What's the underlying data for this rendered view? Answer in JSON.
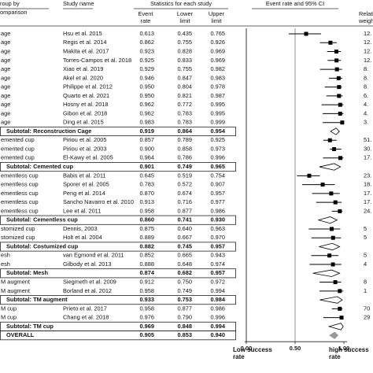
{
  "chart_data": {
    "type": "forest",
    "header": {
      "group": "roup by",
      "comparison": "omparison",
      "study": "Study name",
      "stats": "Statistics for each study",
      "event_rate": "Event rate",
      "lower": "Lower limit",
      "upper": "Upper limit",
      "ci": "Event rate and 95% CI",
      "weight": "Relativ weigh"
    },
    "xlim": [
      0,
      1
    ],
    "xticks": [
      {
        "value": 0,
        "label": "0.00"
      },
      {
        "value": 0.5,
        "label": "0.50"
      },
      {
        "value": 1,
        "label": "1.00"
      }
    ],
    "xlabel_left": "Low success rate",
    "xlabel_right": "high success rate",
    "rows": [
      {
        "group": "age",
        "study": "Hsu et al. 2015",
        "values": [
          0.613,
          0.435,
          0.765
        ],
        "value_labels": [
          "0.613",
          "0.435",
          "0.765"
        ],
        "weight": "12."
      },
      {
        "group": "age",
        "study": "Regis et al. 2014",
        "values": [
          0.862,
          0.755,
          0.926
        ],
        "value_labels": [
          "0.862",
          "0.755",
          "0.926"
        ],
        "weight": "12."
      },
      {
        "group": "age",
        "study": "Makita et al. 2017",
        "values": [
          0.923,
          0.828,
          0.969
        ],
        "value_labels": [
          "0.923",
          "0.828",
          "0.969"
        ],
        "weight": "12."
      },
      {
        "group": "age",
        "study": "Torres-Campos et al. 2018",
        "values": [
          0.925,
          0.833,
          0.969
        ],
        "value_labels": [
          "0.925",
          "0.833",
          "0.969"
        ],
        "weight": "12."
      },
      {
        "group": "age",
        "study": "Xiao et al. 2019",
        "values": [
          0.929,
          0.755,
          0.982
        ],
        "value_labels": [
          "0.929",
          "0.755",
          "0.982"
        ],
        "weight": "8."
      },
      {
        "group": "age",
        "study": "Akel et al. 2020",
        "values": [
          0.946,
          0.847,
          0.983
        ],
        "value_labels": [
          "0.946",
          "0.847",
          "0.983"
        ],
        "weight": "8."
      },
      {
        "group": "age",
        "study": "Philippe et al. 2012",
        "values": [
          0.95,
          0.804,
          0.978
        ],
        "value_labels": [
          "0.950",
          "0.804",
          "0.978"
        ],
        "weight": "8."
      },
      {
        "group": "age",
        "study": "Quarto et al. 2021",
        "values": [
          0.95,
          0.821,
          0.987
        ],
        "value_labels": [
          "0.950",
          "0.821",
          "0.987"
        ],
        "weight": "6."
      },
      {
        "group": "age",
        "study": "Hosny et al. 2018",
        "values": [
          0.962,
          0.772,
          0.995
        ],
        "value_labels": [
          "0.962",
          "0.772",
          "0.995"
        ],
        "weight": "4."
      },
      {
        "group": "age",
        "study": "Gibon et al. 2018",
        "values": [
          0.962,
          0.783,
          0.995
        ],
        "value_labels": [
          "0.962",
          "0.783",
          "0.995"
        ],
        "weight": "4."
      },
      {
        "group": "age",
        "study": "Ding et al. 2015",
        "values": [
          0.983,
          0.783,
          0.999
        ],
        "value_labels": [
          "0.983",
          "0.783",
          "0.999"
        ],
        "weight": "3."
      },
      {
        "subtotal": "Subtotal: Reconstruction Cage",
        "values": [
          0.919,
          0.864,
          0.954
        ],
        "value_labels": [
          "0.919",
          "0.864",
          "0.954"
        ]
      },
      {
        "group": "emented cup",
        "study": "Piriou et al. 2005",
        "values": [
          0.857,
          0.789,
          0.925
        ],
        "value_labels": [
          "0.857",
          "0.789",
          "0.925"
        ],
        "weight": "51."
      },
      {
        "group": "emented cup",
        "study": "Piriou et al. 2003",
        "values": [
          0.9,
          0.858,
          0.973
        ],
        "value_labels": [
          "0.900",
          "0.858",
          "0.973"
        ],
        "weight": "30."
      },
      {
        "group": "emented cup",
        "study": "El-Kawy et al. 2005",
        "values": [
          0.964,
          0.786,
          0.996
        ],
        "value_labels": [
          "0.964",
          "0.786",
          "0.996"
        ],
        "weight": "17."
      },
      {
        "subtotal": "Subtotal: Cemented cup",
        "values": [
          0.901,
          0.749,
          0.965
        ],
        "value_labels": [
          "0.901",
          "0.749",
          "0.965"
        ]
      },
      {
        "group": "ementless cup",
        "study": "Babis et al. 2011",
        "values": [
          0.645,
          0.519,
          0.754
        ],
        "value_labels": [
          "0.645",
          "0.519",
          "0.754"
        ],
        "weight": "23."
      },
      {
        "group": "ementless cup",
        "study": "Sporer et al. 2005",
        "values": [
          0.783,
          0.572,
          0.907
        ],
        "value_labels": [
          "0.783",
          "0.572",
          "0.907"
        ],
        "weight": "18."
      },
      {
        "group": "ementless cup",
        "study": "Peng et al. 2014",
        "values": [
          0.87,
          0.674,
          0.957
        ],
        "value_labels": [
          "0.870",
          "0.674",
          "0.957"
        ],
        "weight": "17."
      },
      {
        "group": "ementless cup",
        "study": "Sancho Navarro et al. 2010",
        "values": [
          0.913,
          0.716,
          0.977
        ],
        "value_labels": [
          "0.913",
          "0.716",
          "0.977"
        ],
        "weight": "17."
      },
      {
        "group": "ementless cup",
        "study": "Lee et al. 2011",
        "values": [
          0.958,
          0.877,
          0.986
        ],
        "value_labels": [
          "0.958",
          "0.877",
          "0.986"
        ],
        "weight": "24."
      },
      {
        "subtotal": "Subtotal: Cementless cup",
        "values": [
          0.86,
          0.741,
          0.93
        ],
        "value_labels": [
          "0.860",
          "0.741",
          "0.930"
        ]
      },
      {
        "group": "stomized cup",
        "study": "Dennis, 2003",
        "values": [
          0.875,
          0.64,
          0.963
        ],
        "value_labels": [
          "0.875",
          "0.640",
          "0.963"
        ],
        "weight": "5"
      },
      {
        "group": "stomized cup",
        "study": "Holt et al. 2004",
        "values": [
          0.889,
          0.667,
          0.97
        ],
        "value_labels": [
          "0.889",
          "0.667",
          "0.970"
        ],
        "weight": "5"
      },
      {
        "subtotal": "Subtotal: Costumized cup",
        "values": [
          0.882,
          0.745,
          0.957
        ],
        "value_labels": [
          "0.882",
          "0.745",
          "0.957"
        ]
      },
      {
        "group": "esh",
        "study": "van Egmond et al. 2011",
        "values": [
          0.852,
          0.665,
          0.943
        ],
        "value_labels": [
          "0.852",
          "0.665",
          "0.943"
        ],
        "weight": "5"
      },
      {
        "group": "esh",
        "study": "Gilbody et al. 2013",
        "values": [
          0.888,
          0.648,
          0.974
        ],
        "value_labels": [
          "0.888",
          "0.648",
          "0.974"
        ],
        "weight": "4"
      },
      {
        "subtotal": "Subtotal: Mesh",
        "values": [
          0.874,
          0.682,
          0.957
        ],
        "value_labels": [
          "0.874",
          "0.682",
          "0.957"
        ]
      },
      {
        "group": "M augment",
        "study": "Siegmeth et al. 2009",
        "values": [
          0.912,
          0.75,
          0.972
        ],
        "value_labels": [
          "0.912",
          "0.750",
          "0.972"
        ],
        "weight": "8"
      },
      {
        "group": "M augment",
        "study": "Borland et al. 2012",
        "values": [
          0.958,
          0.749,
          0.994
        ],
        "value_labels": [
          "0.958",
          "0.749",
          "0.994"
        ],
        "weight": "1"
      },
      {
        "subtotal": "Subtotal: TM augment",
        "values": [
          0.933,
          0.753,
          0.984
        ],
        "value_labels": [
          "0.933",
          "0.753",
          "0.984"
        ]
      },
      {
        "group": "M cup",
        "study": "Prieto et al. 2017",
        "values": [
          0.958,
          0.877,
          0.986
        ],
        "value_labels": [
          "0.958",
          "0.877",
          "0.986"
        ],
        "weight": "70"
      },
      {
        "group": "M cup",
        "study": "Chang et al. 2018",
        "values": [
          0.976,
          0.79,
          0.996
        ],
        "value_labels": [
          "0.976",
          "0.790",
          "0.996"
        ],
        "weight": "29"
      },
      {
        "subtotal": "Subtotal: TM cup",
        "values": [
          0.969,
          0.848,
          0.994
        ],
        "value_labels": [
          "0.969",
          "0.848",
          "0.994"
        ]
      },
      {
        "overall": "OVERALL",
        "values": [
          0.905,
          0.853,
          0.94
        ],
        "value_labels": [
          "0.905",
          "0.853",
          "0.940"
        ]
      }
    ]
  }
}
